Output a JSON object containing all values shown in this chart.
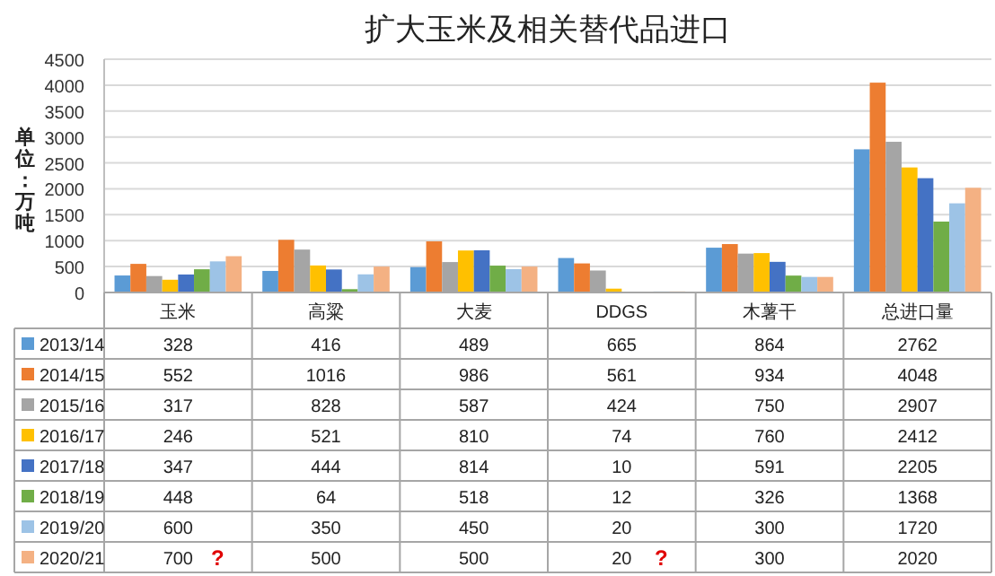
{
  "chart_data": {
    "type": "bar",
    "title": "扩大玉米及相关替代品进口",
    "ylabel": "单位：万吨",
    "categories": [
      "玉米",
      "高粱",
      "大麦",
      "DDGS",
      "木薯干",
      "总进口量"
    ],
    "series": [
      {
        "name": "2013/14",
        "color": "#5b9bd5",
        "values": [
          328,
          416,
          489,
          665,
          864,
          2762
        ]
      },
      {
        "name": "2014/15",
        "color": "#ed7d31",
        "values": [
          552,
          1016,
          986,
          561,
          934,
          4048
        ]
      },
      {
        "name": "2015/16",
        "color": "#a5a5a5",
        "values": [
          317,
          828,
          587,
          424,
          750,
          2907
        ]
      },
      {
        "name": "2016/17",
        "color": "#ffc000",
        "values": [
          246,
          521,
          810,
          74,
          760,
          2412
        ]
      },
      {
        "name": "2017/18",
        "color": "#4472c4",
        "values": [
          347,
          444,
          814,
          10,
          591,
          2205
        ]
      },
      {
        "name": "2018/19",
        "color": "#70ad47",
        "values": [
          448,
          64,
          518,
          12,
          326,
          1368
        ]
      },
      {
        "name": "2019/20",
        "color": "#9dc3e6",
        "values": [
          600,
          350,
          450,
          20,
          300,
          1720
        ]
      },
      {
        "name": "2020/21",
        "color": "#f4b183",
        "values": [
          700,
          500,
          500,
          20,
          300,
          2020
        ]
      }
    ],
    "ylim": [
      0,
      4500
    ],
    "yticks": [
      0,
      500,
      1000,
      1500,
      2000,
      2500,
      3000,
      3500,
      4000,
      4500
    ],
    "grid": "y",
    "legend": "bottom",
    "data_labels": true,
    "annotations": [
      "?",
      "?"
    ]
  }
}
